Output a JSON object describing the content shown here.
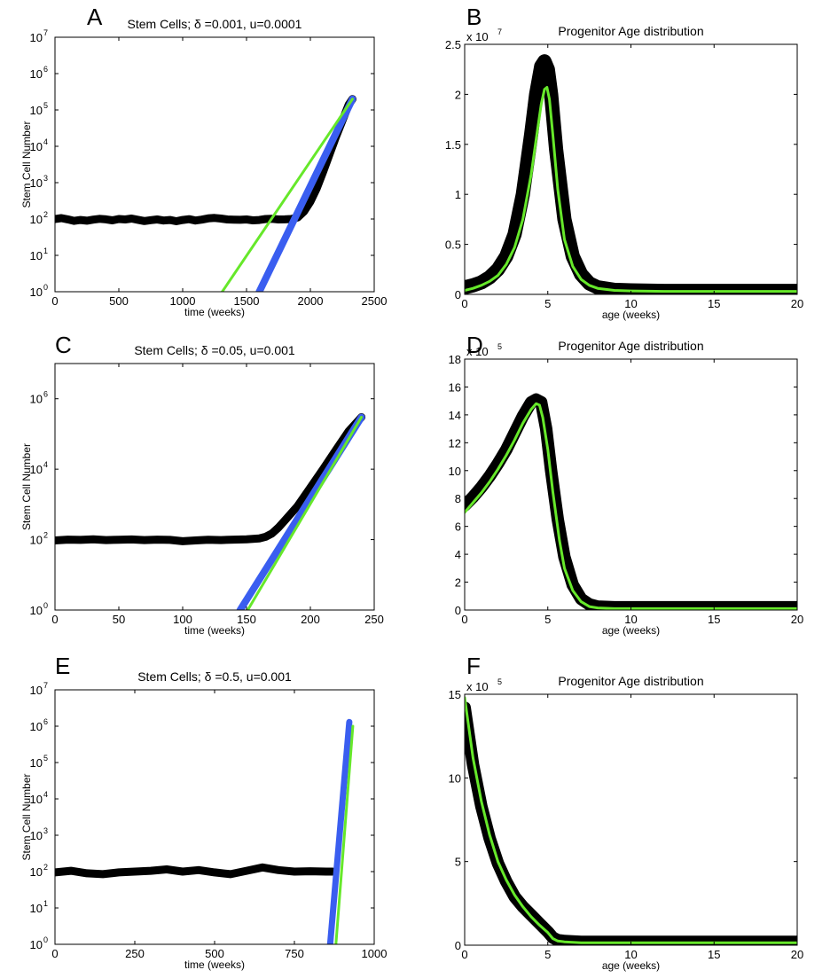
{
  "chart_data": [
    {
      "panel_label": "A",
      "type": "line",
      "yscale": "log",
      "title": "Stem Cells; δ =0.001, u=0.0001",
      "xlabel": "time (weeks)",
      "ylabel": "Stem Cell Number",
      "xlim": [
        0,
        2500
      ],
      "ylim_exp": [
        0,
        7
      ],
      "xticks": [
        {
          "v": 0,
          "t": "0"
        },
        {
          "v": 500,
          "t": "500"
        },
        {
          "v": 1000,
          "t": "1000"
        },
        {
          "v": 1500,
          "t": "1500"
        },
        {
          "v": 2000,
          "t": "2000"
        },
        {
          "v": 2500,
          "t": "2500"
        }
      ],
      "yticks": [
        {
          "e": 0,
          "t": "10",
          "s": "0"
        },
        {
          "e": 1,
          "t": "10",
          "s": "1"
        },
        {
          "e": 2,
          "t": "10",
          "s": "2"
        },
        {
          "e": 3,
          "t": "10",
          "s": "3"
        },
        {
          "e": 4,
          "t": "10",
          "s": "4"
        },
        {
          "e": 5,
          "t": "10",
          "s": "5"
        },
        {
          "e": 6,
          "t": "10",
          "s": "6"
        },
        {
          "e": 7,
          "t": "10",
          "s": "7"
        }
      ],
      "series": [
        {
          "name": "simulation",
          "color": "#000000",
          "width": 9,
          "x": [
            0,
            50,
            100,
            150,
            200,
            250,
            300,
            350,
            400,
            450,
            500,
            550,
            600,
            650,
            700,
            750,
            800,
            850,
            900,
            950,
            1000,
            1050,
            1100,
            1150,
            1200,
            1250,
            1300,
            1350,
            1400,
            1450,
            1500,
            1550,
            1600,
            1650,
            1700,
            1750,
            1800,
            1850,
            1900,
            1950,
            2000,
            2050,
            2100,
            2150,
            2200,
            2250,
            2300,
            2330
          ],
          "y": [
            100,
            106,
            98,
            89,
            94,
            90,
            96,
            101,
            98,
            92,
            100,
            97,
            103,
            95,
            88,
            93,
            97,
            91,
            94,
            87,
            94,
            99,
            91,
            96,
            104,
            107,
            103,
            97,
            96,
            95,
            97,
            92,
            94,
            100,
            101,
            97,
            98,
            100,
            110,
            160,
            300,
            700,
            2000,
            6000,
            18000,
            50000,
            140000,
            200000
          ]
        },
        {
          "name": "fit-blue",
          "color": "#3a5ef0",
          "width": 8,
          "x": [
            1600,
            2330
          ],
          "y": [
            1,
            200000
          ]
        },
        {
          "name": "fit-green",
          "color": "#66e82a",
          "width": 3,
          "x": [
            1310,
            2330
          ],
          "y": [
            1,
            200000
          ]
        }
      ]
    },
    {
      "panel_label": "B",
      "type": "line",
      "yscale": "linear",
      "title": "Progenitor Age distribution",
      "xlabel": "age (weeks)",
      "ylabel": "",
      "multiplier": "x 10",
      "multiplier_exp": "7",
      "xlim": [
        0,
        20
      ],
      "ylim": [
        0,
        2.5
      ],
      "xticks": [
        {
          "v": 0,
          "t": "0"
        },
        {
          "v": 5,
          "t": "5"
        },
        {
          "v": 10,
          "t": "10"
        },
        {
          "v": 15,
          "t": "15"
        },
        {
          "v": 20,
          "t": "20"
        }
      ],
      "yticks": [
        {
          "v": 0,
          "t": "0"
        },
        {
          "v": 0.5,
          "t": "0.5"
        },
        {
          "v": 1,
          "t": "1"
        },
        {
          "v": 1.5,
          "t": "1.5"
        },
        {
          "v": 2,
          "t": "2"
        },
        {
          "v": 2.5,
          "t": "2.5"
        }
      ],
      "series": [
        {
          "name": "simulation",
          "color": "#000000",
          "width": 16,
          "x": [
            0,
            0.5,
            1,
            1.5,
            2,
            2.5,
            3,
            3.5,
            4,
            4.3,
            4.6,
            4.8,
            5,
            5.2,
            5.5,
            6,
            6.5,
            7,
            7.5,
            8,
            9,
            10,
            12,
            15,
            20
          ],
          "y": [
            0.07,
            0.09,
            0.12,
            0.17,
            0.25,
            0.38,
            0.6,
            1.0,
            1.6,
            2.0,
            2.28,
            2.33,
            2.25,
            2.0,
            1.45,
            0.75,
            0.38,
            0.2,
            0.11,
            0.07,
            0.045,
            0.04,
            0.035,
            0.035,
            0.035
          ]
        },
        {
          "name": "model",
          "color": "#66e82a",
          "width": 3,
          "x": [
            0,
            0.5,
            1,
            1.5,
            2,
            2.5,
            3,
            3.5,
            4,
            4.3,
            4.6,
            4.8,
            4.95,
            5.1,
            5.3,
            5.6,
            6,
            6.5,
            7,
            7.5,
            8,
            9,
            10,
            12,
            15,
            20
          ],
          "y": [
            0.04,
            0.06,
            0.09,
            0.13,
            0.19,
            0.3,
            0.47,
            0.75,
            1.2,
            1.55,
            1.9,
            2.05,
            2.07,
            1.95,
            1.6,
            1.05,
            0.55,
            0.28,
            0.15,
            0.09,
            0.06,
            0.04,
            0.035,
            0.03,
            0.03,
            0.03
          ]
        }
      ]
    },
    {
      "panel_label": "C",
      "type": "line",
      "yscale": "log",
      "title": "Stem Cells; δ =0.05, u=0.001",
      "xlabel": "time (weeks)",
      "ylabel": "Stem Cell Number",
      "xlim": [
        0,
        250
      ],
      "ylim_exp": [
        0,
        7
      ],
      "xticks": [
        {
          "v": 0,
          "t": "0"
        },
        {
          "v": 50,
          "t": "50"
        },
        {
          "v": 100,
          "t": "100"
        },
        {
          "v": 150,
          "t": "150"
        },
        {
          "v": 200,
          "t": "200"
        },
        {
          "v": 250,
          "t": "250"
        }
      ],
      "yticks": [
        {
          "e": 0,
          "t": "10",
          "s": "0"
        },
        {
          "e": 2,
          "t": "10",
          "s": "2"
        },
        {
          "e": 4,
          "t": "10",
          "s": "4"
        },
        {
          "e": 6,
          "t": "10",
          "s": "6"
        }
      ],
      "series": [
        {
          "name": "simulation",
          "color": "#000000",
          "width": 9,
          "x": [
            0,
            10,
            20,
            30,
            40,
            50,
            60,
            70,
            80,
            90,
            100,
            110,
            120,
            130,
            140,
            150,
            160,
            165,
            170,
            175,
            180,
            190,
            200,
            210,
            220,
            230,
            240
          ],
          "y": [
            95,
            100,
            98,
            102,
            97,
            99,
            101,
            97,
            100,
            98,
            90,
            95,
            99,
            97,
            100,
            102,
            108,
            120,
            150,
            220,
            350,
            900,
            3000,
            10000,
            35000,
            120000,
            300000
          ]
        },
        {
          "name": "fit-blue",
          "color": "#3a5ef0",
          "width": 8,
          "x": [
            145,
            240
          ],
          "y": [
            1,
            300000
          ]
        },
        {
          "name": "fit-green",
          "color": "#66e82a",
          "width": 3,
          "x": [
            151,
            240
          ],
          "y": [
            1,
            300000
          ]
        }
      ]
    },
    {
      "panel_label": "D",
      "type": "line",
      "yscale": "linear",
      "title": "Progenitor Age distribution",
      "xlabel": "age (weeks)",
      "ylabel": "",
      "multiplier": "x 10",
      "multiplier_exp": "5",
      "xlim": [
        0,
        20
      ],
      "ylim": [
        0,
        18
      ],
      "xticks": [
        {
          "v": 0,
          "t": "0"
        },
        {
          "v": 5,
          "t": "5"
        },
        {
          "v": 10,
          "t": "10"
        },
        {
          "v": 15,
          "t": "15"
        },
        {
          "v": 20,
          "t": "20"
        }
      ],
      "yticks": [
        {
          "v": 0,
          "t": "0"
        },
        {
          "v": 2,
          "t": "2"
        },
        {
          "v": 4,
          "t": "4"
        },
        {
          "v": 6,
          "t": "6"
        },
        {
          "v": 8,
          "t": "8"
        },
        {
          "v": 10,
          "t": "10"
        },
        {
          "v": 12,
          "t": "12"
        },
        {
          "v": 14,
          "t": "14"
        },
        {
          "v": 16,
          "t": "16"
        },
        {
          "v": 18,
          "t": "18"
        }
      ],
      "series": [
        {
          "name": "simulation",
          "color": "#000000",
          "width": 14,
          "x": [
            0,
            0.5,
            1,
            1.5,
            2,
            2.5,
            3,
            3.5,
            4,
            4.3,
            4.6,
            4.9,
            5.2,
            5.6,
            6,
            6.5,
            7,
            7.5,
            8,
            9,
            10,
            15,
            20
          ],
          "y": [
            7.5,
            8.1,
            8.8,
            9.6,
            10.5,
            11.5,
            12.7,
            13.9,
            14.9,
            15.1,
            14.9,
            13.0,
            10.0,
            6.5,
            3.8,
            1.8,
            0.8,
            0.4,
            0.25,
            0.2,
            0.2,
            0.2,
            0.2
          ]
        },
        {
          "name": "model",
          "color": "#66e82a",
          "width": 3,
          "x": [
            0,
            0.5,
            1,
            1.5,
            2,
            2.5,
            3,
            3.5,
            4,
            4.3,
            4.5,
            4.7,
            5,
            5.3,
            5.7,
            6,
            6.5,
            7,
            7.5,
            8,
            9,
            10,
            15,
            20
          ],
          "y": [
            7.0,
            7.7,
            8.4,
            9.2,
            10.1,
            11.1,
            12.2,
            13.4,
            14.4,
            14.8,
            14.7,
            13.8,
            11.5,
            8.5,
            5.0,
            3.0,
            1.4,
            0.6,
            0.25,
            0.15,
            0.1,
            0.1,
            0.1,
            0.1
          ]
        }
      ]
    },
    {
      "panel_label": "E",
      "type": "line",
      "yscale": "log",
      "title": "Stem Cells; δ =0.5, u=0.001",
      "xlabel": "time (weeks)",
      "ylabel": "Stem Cell Number",
      "xlim": [
        0,
        1000
      ],
      "ylim_exp": [
        0,
        7
      ],
      "xticks": [
        {
          "v": 0,
          "t": "0"
        },
        {
          "v": 250,
          "t": "250"
        },
        {
          "v": 500,
          "t": "500"
        },
        {
          "v": 750,
          "t": "750"
        },
        {
          "v": 1000,
          "t": "1000"
        }
      ],
      "yticks": [
        {
          "e": 0,
          "t": "10",
          "s": "0"
        },
        {
          "e": 1,
          "t": "10",
          "s": "1"
        },
        {
          "e": 2,
          "t": "10",
          "s": "2"
        },
        {
          "e": 3,
          "t": "10",
          "s": "3"
        },
        {
          "e": 4,
          "t": "10",
          "s": "4"
        },
        {
          "e": 5,
          "t": "10",
          "s": "5"
        },
        {
          "e": 6,
          "t": "10",
          "s": "6"
        },
        {
          "e": 7,
          "t": "10",
          "s": "7"
        }
      ],
      "series": [
        {
          "name": "simulation",
          "color": "#000000",
          "width": 9,
          "x": [
            0,
            50,
            100,
            150,
            200,
            250,
            300,
            350,
            400,
            450,
            500,
            550,
            600,
            650,
            700,
            750,
            800,
            850,
            870
          ],
          "y": [
            95,
            105,
            90,
            85,
            95,
            100,
            105,
            115,
            100,
            110,
            95,
            85,
            105,
            130,
            110,
            100,
            102,
            100,
            100
          ]
        },
        {
          "name": "fit-blue",
          "color": "#3a5ef0",
          "width": 7,
          "x": [
            862,
            922
          ],
          "y": [
            1,
            1300000
          ]
        },
        {
          "name": "fit-green",
          "color": "#66e82a",
          "width": 3,
          "x": [
            880,
            933
          ],
          "y": [
            1,
            1000000
          ]
        }
      ]
    },
    {
      "panel_label": "F",
      "type": "line",
      "yscale": "linear",
      "title": "Progenitor Age distribution",
      "xlabel": "age (weeks)",
      "ylabel": "",
      "multiplier": "x 10",
      "multiplier_exp": "5",
      "xlim": [
        0,
        20
      ],
      "ylim": [
        0,
        15
      ],
      "xticks": [
        {
          "v": 0,
          "t": "0"
        },
        {
          "v": 5,
          "t": "5"
        },
        {
          "v": 10,
          "t": "10"
        },
        {
          "v": 15,
          "t": "15"
        },
        {
          "v": 20,
          "t": "20"
        }
      ],
      "yticks": [
        {
          "v": 0,
          "t": "0"
        },
        {
          "v": 5,
          "t": "5"
        },
        {
          "v": 10,
          "t": "10"
        },
        {
          "v": 15,
          "t": "15"
        }
      ],
      "series": [
        {
          "name": "simulation",
          "color": "#000000",
          "width": 14,
          "x": [
            0,
            0.5,
            1,
            1.5,
            2,
            2.5,
            3,
            3.5,
            4,
            4.5,
            5,
            5.3,
            5.6,
            6,
            7,
            10,
            15,
            20
          ],
          "y": [
            14.2,
            10.8,
            8.3,
            6.4,
            4.9,
            3.8,
            2.9,
            2.3,
            1.8,
            1.3,
            0.8,
            0.45,
            0.3,
            0.25,
            0.2,
            0.2,
            0.2,
            0.2
          ]
        },
        {
          "name": "model",
          "color": "#66e82a",
          "width": 3,
          "x": [
            0,
            0.5,
            1,
            1.5,
            2,
            2.5,
            3,
            3.5,
            4,
            4.5,
            5,
            5.3,
            5.6,
            6,
            7,
            10,
            15,
            20
          ],
          "y": [
            14.8,
            11.2,
            8.6,
            6.6,
            5.0,
            3.9,
            3.0,
            2.3,
            1.7,
            1.2,
            0.75,
            0.4,
            0.25,
            0.2,
            0.15,
            0.15,
            0.15,
            0.15
          ]
        }
      ]
    }
  ]
}
